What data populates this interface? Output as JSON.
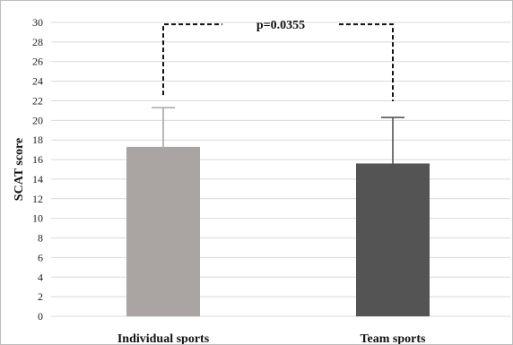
{
  "chart_data": {
    "type": "bar",
    "categories": [
      "Individual sports",
      "Team sports"
    ],
    "values": [
      17.3,
      15.6
    ],
    "error_bars": [
      4.0,
      4.7
    ],
    "bar_colors": [
      "#aaa5a3",
      "#545454"
    ],
    "ylabel": "SCAT score",
    "xlabel": "",
    "ylim": [
      0,
      30
    ],
    "yticks": [
      0,
      2,
      4,
      6,
      8,
      10,
      12,
      14,
      16,
      18,
      20,
      22,
      24,
      26,
      28,
      30
    ],
    "grid": true,
    "grid_color": "#d9d9d9",
    "annotation": {
      "text": "p=0.0355",
      "style": "dashed significance bracket"
    }
  }
}
